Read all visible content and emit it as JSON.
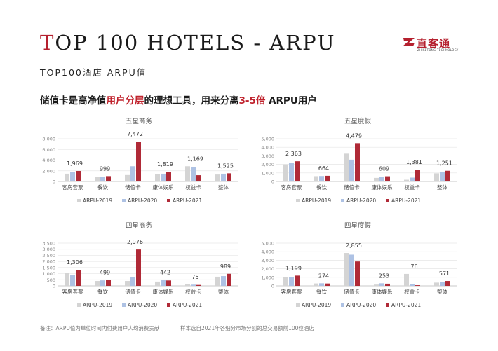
{
  "header": {
    "title_first": "T",
    "title_rest": "OP 100 HOTELS - ARPU",
    "subtitle": "TOP100酒店 ARPU值",
    "logo_text": "直客通",
    "logo_sub": "ZHIKETONG TECHNOLOGY"
  },
  "headline": {
    "part1": "储值卡是高净值",
    "part2": "用户分层",
    "part3": "的理想工具，用来分离",
    "part4": "3-5倍",
    "part5": " ARPU用户"
  },
  "footnotes": {
    "left": "备注：ARPU值为单位时间内付费用户人均消费贡献",
    "right": "样本选自2021年各细分市场分别的总交易额前100位酒店"
  },
  "colors": {
    "s2019": "#d4d4d4",
    "s2020": "#aec2e4",
    "s2021": "#b02a37"
  },
  "chart_data": [
    {
      "type": "bar",
      "title": "五星商务",
      "categories": [
        "客房套票",
        "餐饮",
        "储值卡",
        "康体娱乐",
        "权益卡",
        "整体"
      ],
      "series": [
        {
          "name": "ARPU-2019",
          "values": [
            1450,
            900,
            1200,
            1350,
            2850,
            1300
          ]
        },
        {
          "name": "ARPU-2020",
          "values": [
            1750,
            850,
            2850,
            1450,
            2750,
            1450
          ]
        },
        {
          "name": "ARPU-2021",
          "values": [
            1969,
            999,
            7472,
            1819,
            1169,
            1525
          ]
        }
      ],
      "data_labels": [
        "1,969",
        "999",
        "7,472",
        "1,819",
        "1,169",
        "1,525"
      ],
      "yticks": [
        "8,000",
        "6,000",
        "4,000",
        "2,000",
        "0"
      ],
      "ylim": [
        0,
        8000
      ]
    },
    {
      "type": "bar",
      "title": "五星度假",
      "categories": [
        "客房套票",
        "餐饮",
        "储值卡",
        "康体娱乐",
        "权益卡",
        "整体"
      ],
      "series": [
        {
          "name": "ARPU-2019",
          "values": [
            2000,
            620,
            3250,
            420,
            200,
            950
          ]
        },
        {
          "name": "ARPU-2020",
          "values": [
            2200,
            640,
            2550,
            560,
            450,
            1150
          ]
        },
        {
          "name": "ARPU-2021",
          "values": [
            2363,
            664,
            4479,
            609,
            1381,
            1251
          ]
        }
      ],
      "data_labels": [
        "2,363",
        "664",
        "4,479",
        "609",
        "1,381",
        "1,251"
      ],
      "yticks": [
        "5,000",
        "4,000",
        "3,000",
        "2,000",
        "1,000",
        "0"
      ],
      "ylim": [
        0,
        5000
      ]
    },
    {
      "type": "bar",
      "title": "四星商务",
      "categories": [
        "客房套票",
        "餐饮",
        "储值卡",
        "康体娱乐",
        "权益卡",
        "整体"
      ],
      "series": [
        {
          "name": "ARPU-2019",
          "values": [
            1050,
            400,
            400,
            350,
            120,
            750
          ]
        },
        {
          "name": "ARPU-2020",
          "values": [
            900,
            450,
            700,
            500,
            100,
            800
          ]
        },
        {
          "name": "ARPU-2021",
          "values": [
            1306,
            499,
            2976,
            442,
            75,
            989
          ]
        }
      ],
      "data_labels": [
        "1,306",
        "499",
        "2,976",
        "442",
        "75",
        "989"
      ],
      "yticks": [
        "3,500",
        "3,000",
        "2,500",
        "2,000",
        "1,500",
        "1,000",
        "500",
        "0"
      ],
      "ylim": [
        0,
        3500
      ]
    },
    {
      "type": "bar",
      "title": "四星度假",
      "categories": [
        "客房套票",
        "餐饮",
        "储值卡",
        "康体娱乐",
        "权益卡",
        "整体"
      ],
      "series": [
        {
          "name": "ARPU-2019",
          "values": [
            1000,
            280,
            3850,
            150,
            1400,
            380
          ]
        },
        {
          "name": "ARPU-2020",
          "values": [
            1050,
            300,
            3650,
            300,
            200,
            450
          ]
        },
        {
          "name": "ARPU-2021",
          "values": [
            1199,
            274,
            2855,
            253,
            76,
            571
          ]
        }
      ],
      "data_labels": [
        "1,199",
        "274",
        "2,855",
        "253",
        "76",
        "571"
      ],
      "yticks": [
        "5,000",
        "4,000",
        "3,000",
        "2,000",
        "1,000",
        "0"
      ],
      "ylim": [
        0,
        5000
      ]
    }
  ]
}
